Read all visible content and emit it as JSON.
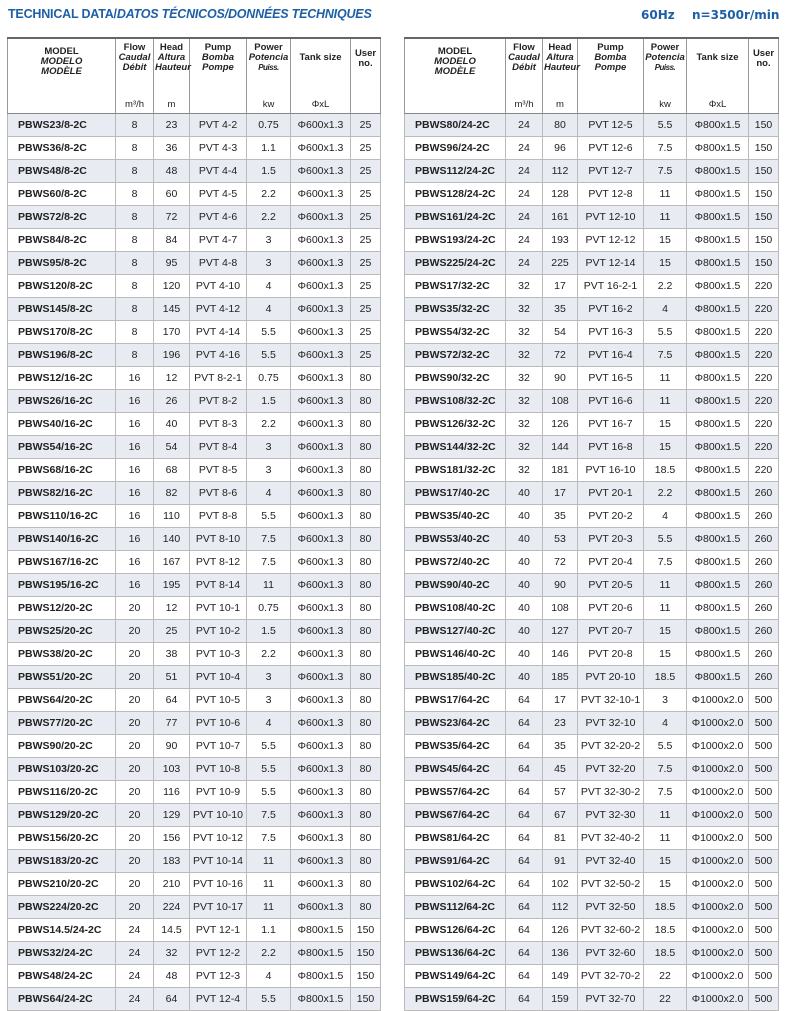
{
  "title": {
    "main": "TECHNICAL DATA/",
    "italic": "DATOS TÉCNICOS/DONNÉES TECHNIQUES"
  },
  "freq": "60Hz",
  "speed": "n=3500r/min",
  "colors": {
    "accent": "#1d5fa6",
    "row_shade": "#e8ebf2"
  },
  "headers": {
    "model": [
      "MODEL",
      "MODELO",
      "MODÈLE"
    ],
    "flow": [
      "Flow",
      "Caudal",
      "Débit"
    ],
    "flow_unit": "m³/h",
    "head": [
      "Head",
      "Altura",
      "Hauteur"
    ],
    "head_unit": "m",
    "pump": [
      "Pump",
      "Bomba",
      "Pompe"
    ],
    "power": [
      "Power",
      "Potencia",
      "Puiss."
    ],
    "power_unit": "kw",
    "tank": "Tank size",
    "tank_unit": "ΦxL",
    "user": [
      "User",
      "no."
    ]
  },
  "left_rows": [
    [
      "PBWS23/8-2C",
      "8",
      "23",
      "PVT 4-2",
      "0.75",
      "Φ600x1.3",
      "25"
    ],
    [
      "PBWS36/8-2C",
      "8",
      "36",
      "PVT 4-3",
      "1.1",
      "Φ600x1.3",
      "25"
    ],
    [
      "PBWS48/8-2C",
      "8",
      "48",
      "PVT 4-4",
      "1.5",
      "Φ600x1.3",
      "25"
    ],
    [
      "PBWS60/8-2C",
      "8",
      "60",
      "PVT 4-5",
      "2.2",
      "Φ600x1.3",
      "25"
    ],
    [
      "PBWS72/8-2C",
      "8",
      "72",
      "PVT 4-6",
      "2.2",
      "Φ600x1.3",
      "25"
    ],
    [
      "PBWS84/8-2C",
      "8",
      "84",
      "PVT 4-7",
      "3",
      "Φ600x1.3",
      "25"
    ],
    [
      "PBWS95/8-2C",
      "8",
      "95",
      "PVT 4-8",
      "3",
      "Φ600x1.3",
      "25"
    ],
    [
      "PBWS120/8-2C",
      "8",
      "120",
      "PVT 4-10",
      "4",
      "Φ600x1.3",
      "25"
    ],
    [
      "PBWS145/8-2C",
      "8",
      "145",
      "PVT 4-12",
      "4",
      "Φ600x1.3",
      "25"
    ],
    [
      "PBWS170/8-2C",
      "8",
      "170",
      "PVT 4-14",
      "5.5",
      "Φ600x1.3",
      "25"
    ],
    [
      "PBWS196/8-2C",
      "8",
      "196",
      "PVT 4-16",
      "5.5",
      "Φ600x1.3",
      "25"
    ],
    [
      "PBWS12/16-2C",
      "16",
      "12",
      "PVT 8-2-1",
      "0.75",
      "Φ600x1.3",
      "80"
    ],
    [
      "PBWS26/16-2C",
      "16",
      "26",
      "PVT 8-2",
      "1.5",
      "Φ600x1.3",
      "80"
    ],
    [
      "PBWS40/16-2C",
      "16",
      "40",
      "PVT 8-3",
      "2.2",
      "Φ600x1.3",
      "80"
    ],
    [
      "PBWS54/16-2C",
      "16",
      "54",
      "PVT 8-4",
      "3",
      "Φ600x1.3",
      "80"
    ],
    [
      "PBWS68/16-2C",
      "16",
      "68",
      "PVT 8-5",
      "3",
      "Φ600x1.3",
      "80"
    ],
    [
      "PBWS82/16-2C",
      "16",
      "82",
      "PVT 8-6",
      "4",
      "Φ600x1.3",
      "80"
    ],
    [
      "PBWS110/16-2C",
      "16",
      "110",
      "PVT 8-8",
      "5.5",
      "Φ600x1.3",
      "80"
    ],
    [
      "PBWS140/16-2C",
      "16",
      "140",
      "PVT 8-10",
      "7.5",
      "Φ600x1.3",
      "80"
    ],
    [
      "PBWS167/16-2C",
      "16",
      "167",
      "PVT 8-12",
      "7.5",
      "Φ600x1.3",
      "80"
    ],
    [
      "PBWS195/16-2C",
      "16",
      "195",
      "PVT 8-14",
      "11",
      "Φ600x1.3",
      "80"
    ],
    [
      "PBWS12/20-2C",
      "20",
      "12",
      "PVT 10-1",
      "0.75",
      "Φ600x1.3",
      "80"
    ],
    [
      "PBWS25/20-2C",
      "20",
      "25",
      "PVT 10-2",
      "1.5",
      "Φ600x1.3",
      "80"
    ],
    [
      "PBWS38/20-2C",
      "20",
      "38",
      "PVT 10-3",
      "2.2",
      "Φ600x1.3",
      "80"
    ],
    [
      "PBWS51/20-2C",
      "20",
      "51",
      "PVT 10-4",
      "3",
      "Φ600x1.3",
      "80"
    ],
    [
      "PBWS64/20-2C",
      "20",
      "64",
      "PVT 10-5",
      "3",
      "Φ600x1.3",
      "80"
    ],
    [
      "PBWS77/20-2C",
      "20",
      "77",
      "PVT 10-6",
      "4",
      "Φ600x1.3",
      "80"
    ],
    [
      "PBWS90/20-2C",
      "20",
      "90",
      "PVT 10-7",
      "5.5",
      "Φ600x1.3",
      "80"
    ],
    [
      "PBWS103/20-2C",
      "20",
      "103",
      "PVT 10-8",
      "5.5",
      "Φ600x1.3",
      "80"
    ],
    [
      "PBWS116/20-2C",
      "20",
      "116",
      "PVT 10-9",
      "5.5",
      "Φ600x1.3",
      "80"
    ],
    [
      "PBWS129/20-2C",
      "20",
      "129",
      "PVT 10-10",
      "7.5",
      "Φ600x1.3",
      "80"
    ],
    [
      "PBWS156/20-2C",
      "20",
      "156",
      "PVT 10-12",
      "7.5",
      "Φ600x1.3",
      "80"
    ],
    [
      "PBWS183/20-2C",
      "20",
      "183",
      "PVT 10-14",
      "11",
      "Φ600x1.3",
      "80"
    ],
    [
      "PBWS210/20-2C",
      "20",
      "210",
      "PVT 10-16",
      "11",
      "Φ600x1.3",
      "80"
    ],
    [
      "PBWS224/20-2C",
      "20",
      "224",
      "PVT 10-17",
      "11",
      "Φ600x1.3",
      "80"
    ],
    [
      "PBWS14.5/24-2C",
      "24",
      "14.5",
      "PVT 12-1",
      "1.1",
      "Φ800x1.5",
      "150"
    ],
    [
      "PBWS32/24-2C",
      "24",
      "32",
      "PVT 12-2",
      "2.2",
      "Φ800x1.5",
      "150"
    ],
    [
      "PBWS48/24-2C",
      "24",
      "48",
      "PVT 12-3",
      "4",
      "Φ800x1.5",
      "150"
    ],
    [
      "PBWS64/24-2C",
      "24",
      "64",
      "PVT 12-4",
      "5.5",
      "Φ800x1.5",
      "150"
    ]
  ],
  "right_rows": [
    [
      "PBWS80/24-2C",
      "24",
      "80",
      "PVT 12-5",
      "5.5",
      "Φ800x1.5",
      "150"
    ],
    [
      "PBWS96/24-2C",
      "24",
      "96",
      "PVT 12-6",
      "7.5",
      "Φ800x1.5",
      "150"
    ],
    [
      "PBWS112/24-2C",
      "24",
      "112",
      "PVT 12-7",
      "7.5",
      "Φ800x1.5",
      "150"
    ],
    [
      "PBWS128/24-2C",
      "24",
      "128",
      "PVT 12-8",
      "11",
      "Φ800x1.5",
      "150"
    ],
    [
      "PBWS161/24-2C",
      "24",
      "161",
      "PVT 12-10",
      "11",
      "Φ800x1.5",
      "150"
    ],
    [
      "PBWS193/24-2C",
      "24",
      "193",
      "PVT 12-12",
      "15",
      "Φ800x1.5",
      "150"
    ],
    [
      "PBWS225/24-2C",
      "24",
      "225",
      "PVT 12-14",
      "15",
      "Φ800x1.5",
      "150"
    ],
    [
      "PBWS17/32-2C",
      "32",
      "17",
      "PVT 16-2-1",
      "2.2",
      "Φ800x1.5",
      "220"
    ],
    [
      "PBWS35/32-2C",
      "32",
      "35",
      "PVT 16-2",
      "4",
      "Φ800x1.5",
      "220"
    ],
    [
      "PBWS54/32-2C",
      "32",
      "54",
      "PVT 16-3",
      "5.5",
      "Φ800x1.5",
      "220"
    ],
    [
      "PBWS72/32-2C",
      "32",
      "72",
      "PVT 16-4",
      "7.5",
      "Φ800x1.5",
      "220"
    ],
    [
      "PBWS90/32-2C",
      "32",
      "90",
      "PVT 16-5",
      "11",
      "Φ800x1.5",
      "220"
    ],
    [
      "PBWS108/32-2C",
      "32",
      "108",
      "PVT 16-6",
      "11",
      "Φ800x1.5",
      "220"
    ],
    [
      "PBWS126/32-2C",
      "32",
      "126",
      "PVT 16-7",
      "15",
      "Φ800x1.5",
      "220"
    ],
    [
      "PBWS144/32-2C",
      "32",
      "144",
      "PVT 16-8",
      "15",
      "Φ800x1.5",
      "220"
    ],
    [
      "PBWS181/32-2C",
      "32",
      "181",
      "PVT 16-10",
      "18.5",
      "Φ800x1.5",
      "220"
    ],
    [
      "PBWS17/40-2C",
      "40",
      "17",
      "PVT 20-1",
      "2.2",
      "Φ800x1.5",
      "260"
    ],
    [
      "PBWS35/40-2C",
      "40",
      "35",
      "PVT 20-2",
      "4",
      "Φ800x1.5",
      "260"
    ],
    [
      "PBWS53/40-2C",
      "40",
      "53",
      "PVT 20-3",
      "5.5",
      "Φ800x1.5",
      "260"
    ],
    [
      "PBWS72/40-2C",
      "40",
      "72",
      "PVT 20-4",
      "7.5",
      "Φ800x1.5",
      "260"
    ],
    [
      "PBWS90/40-2C",
      "40",
      "90",
      "PVT 20-5",
      "11",
      "Φ800x1.5",
      "260"
    ],
    [
      "PBWS108/40-2C",
      "40",
      "108",
      "PVT 20-6",
      "11",
      "Φ800x1.5",
      "260"
    ],
    [
      "PBWS127/40-2C",
      "40",
      "127",
      "PVT 20-7",
      "15",
      "Φ800x1.5",
      "260"
    ],
    [
      "PBWS146/40-2C",
      "40",
      "146",
      "PVT 20-8",
      "15",
      "Φ800x1.5",
      "260"
    ],
    [
      "PBWS185/40-2C",
      "40",
      "185",
      "PVT 20-10",
      "18.5",
      "Φ800x1.5",
      "260"
    ],
    [
      "PBWS17/64-2C",
      "64",
      "17",
      "PVT 32-10-1",
      "3",
      "Φ1000x2.0",
      "500"
    ],
    [
      "PBWS23/64-2C",
      "64",
      "23",
      "PVT 32-10",
      "4",
      "Φ1000x2.0",
      "500"
    ],
    [
      "PBWS35/64-2C",
      "64",
      "35",
      "PVT 32-20-2",
      "5.5",
      "Φ1000x2.0",
      "500"
    ],
    [
      "PBWS45/64-2C",
      "64",
      "45",
      "PVT 32-20",
      "7.5",
      "Φ1000x2.0",
      "500"
    ],
    [
      "PBWS57/64-2C",
      "64",
      "57",
      "PVT 32-30-2",
      "7.5",
      "Φ1000x2.0",
      "500"
    ],
    [
      "PBWS67/64-2C",
      "64",
      "67",
      "PVT 32-30",
      "11",
      "Φ1000x2.0",
      "500"
    ],
    [
      "PBWS81/64-2C",
      "64",
      "81",
      "PVT 32-40-2",
      "11",
      "Φ1000x2.0",
      "500"
    ],
    [
      "PBWS91/64-2C",
      "64",
      "91",
      "PVT 32-40",
      "15",
      "Φ1000x2.0",
      "500"
    ],
    [
      "PBWS102/64-2C",
      "64",
      "102",
      "PVT 32-50-2",
      "15",
      "Φ1000x2.0",
      "500"
    ],
    [
      "PBWS112/64-2C",
      "64",
      "112",
      "PVT 32-50",
      "18.5",
      "Φ1000x2.0",
      "500"
    ],
    [
      "PBWS126/64-2C",
      "64",
      "126",
      "PVT 32-60-2",
      "18.5",
      "Φ1000x2.0",
      "500"
    ],
    [
      "PBWS136/64-2C",
      "64",
      "136",
      "PVT 32-60",
      "18.5",
      "Φ1000x2.0",
      "500"
    ],
    [
      "PBWS149/64-2C",
      "64",
      "149",
      "PVT 32-70-2",
      "22",
      "Φ1000x2.0",
      "500"
    ],
    [
      "PBWS159/64-2C",
      "64",
      "159",
      "PVT 32-70",
      "22",
      "Φ1000x2.0",
      "500"
    ]
  ]
}
